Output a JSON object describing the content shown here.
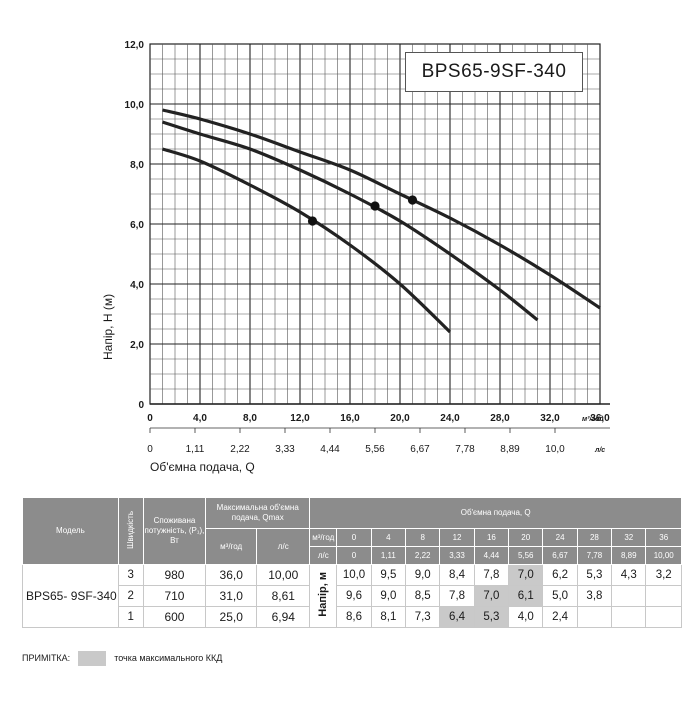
{
  "chart_data": {
    "type": "line",
    "title": "BPS65-9SF-340",
    "ylabel": "Напір, H (м)",
    "xlabel": "Об'ємна подача, Q",
    "ylim": [
      0,
      12
    ],
    "xlim": [
      0,
      36
    ],
    "y_ticks": [
      "0",
      "2,0",
      "4,0",
      "6,0",
      "8,0",
      "10,0",
      "12,0"
    ],
    "x_ticks_m3h": [
      "0",
      "4,0",
      "8,0",
      "12,0",
      "16,0",
      "20,0",
      "24,0",
      "28,0",
      "32,0",
      "36,0"
    ],
    "x_unit_m3h": "м³/год",
    "x_ticks_ls": [
      "0",
      "1,11",
      "2,22",
      "3,33",
      "4,44",
      "5,56",
      "6,67",
      "7,78",
      "8,89",
      "10,0"
    ],
    "x_unit_ls": "л/с",
    "grid": true,
    "series": [
      {
        "speed": "3",
        "x": [
          1,
          4,
          8,
          12,
          16,
          20,
          24,
          28,
          32,
          36
        ],
        "y": [
          9.8,
          9.5,
          9.0,
          8.4,
          7.8,
          7.0,
          6.2,
          5.3,
          4.3,
          3.2
        ],
        "bep": [
          21,
          6.8
        ]
      },
      {
        "speed": "2",
        "x": [
          1,
          4,
          8,
          12,
          16,
          20,
          24,
          28,
          31
        ],
        "y": [
          9.4,
          9.0,
          8.5,
          7.8,
          7.0,
          6.1,
          5.0,
          3.8,
          2.8
        ],
        "bep": [
          18,
          6.6
        ]
      },
      {
        "speed": "1",
        "x": [
          1,
          4,
          8,
          12,
          16,
          20,
          24
        ],
        "y": [
          8.5,
          8.1,
          7.3,
          6.4,
          5.3,
          4.0,
          2.4
        ],
        "bep": [
          13,
          6.1
        ]
      }
    ]
  },
  "table": {
    "h_model": "Модель",
    "h_speed": "Швидкість",
    "h_power": "Споживана потужність, (P₁), Вт",
    "h_qmax": "Максимальна об'ємна подача, Qmax",
    "h_qmax_m3": "м³/год",
    "h_qmax_ls": "л/с",
    "h_flow": "Об'ємна подача, Q",
    "h_row_m3": "м³/год",
    "h_row_ls": "л/с",
    "flow_m3": [
      "0",
      "4",
      "8",
      "12",
      "16",
      "20",
      "24",
      "28",
      "32",
      "36"
    ],
    "flow_ls": [
      "0",
      "1,11",
      "2,22",
      "3,33",
      "4,44",
      "5,56",
      "6,67",
      "7,78",
      "8,89",
      "10,00"
    ],
    "model": "BPS65- 9SF-340",
    "napir_label": "Напір, м",
    "rows": [
      {
        "speed": "3",
        "power": "980",
        "qmax_m3": "36,0",
        "qmax_ls": "10,00",
        "h": [
          "10,0",
          "9,5",
          "9,0",
          "8,4",
          "7,8",
          "7,0",
          "6,2",
          "5,3",
          "4,3",
          "3,2"
        ]
      },
      {
        "speed": "2",
        "power": "710",
        "qmax_m3": "31,0",
        "qmax_ls": "8,61",
        "h": [
          "9,6",
          "9,0",
          "8,5",
          "7,8",
          "7,0",
          "6,1",
          "5,0",
          "3,8",
          "",
          ""
        ]
      },
      {
        "speed": "1",
        "power": "600",
        "qmax_m3": "25,0",
        "qmax_ls": "6,94",
        "h": [
          "8,6",
          "8,1",
          "7,3",
          "6,4",
          "5,3",
          "4,0",
          "2,4",
          "",
          "",
          ""
        ]
      }
    ]
  },
  "note": {
    "label": "ПРИМІТКА:",
    "text": "точка максимального ККД"
  }
}
